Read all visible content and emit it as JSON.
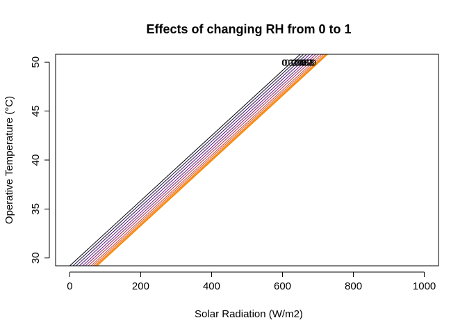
{
  "chart_data": {
    "type": "line",
    "title": "Effects of changing RH from 0 to 1",
    "xlabel": "Solar Radiation (W/m2)",
    "ylabel": "Operative Temperature (°C)",
    "xlim": [
      -40,
      1040
    ],
    "ylim": [
      29.2,
      50.8
    ],
    "xticks": [
      0,
      200,
      400,
      600,
      800,
      1000
    ],
    "xtick_labels": [
      "0",
      "200",
      "400",
      "600",
      "800",
      "1000"
    ],
    "yticks": [
      30,
      35,
      40,
      45,
      50
    ],
    "ytick_labels": [
      "30",
      "35",
      "40",
      "45",
      "50"
    ],
    "grid": false,
    "legend": "none",
    "series": [
      {
        "color": "#000000",
        "x": [
          0,
          650
        ],
        "y": [
          29.2,
          50.8
        ],
        "end_label": "0"
      },
      {
        "color": "#1a0e3d",
        "x": [
          9,
          659
        ],
        "y": [
          29.2,
          50.8
        ],
        "end_label": "0.1"
      },
      {
        "color": "#35105e",
        "x": [
          18,
          668
        ],
        "y": [
          29.2,
          50.8
        ],
        "end_label": "0.2"
      },
      {
        "color": "#51127c",
        "x": [
          27,
          677
        ],
        "y": [
          29.2,
          50.8
        ],
        "end_label": "0.3"
      },
      {
        "color": "#6c1b7f",
        "x": [
          36,
          686
        ],
        "y": [
          29.2,
          50.8
        ],
        "end_label": "0.4"
      },
      {
        "color": "#8a2570",
        "x": [
          44,
          694
        ],
        "y": [
          29.2,
          50.8
        ],
        "end_label": "0.5"
      },
      {
        "color": "#a8345e",
        "x": [
          52,
          702
        ],
        "y": [
          29.2,
          50.8
        ],
        "end_label": "0.6"
      },
      {
        "color": "#c8463a",
        "x": [
          60,
          710
        ],
        "y": [
          29.2,
          50.8
        ],
        "end_label": "0.7"
      },
      {
        "color": "#e05a22",
        "x": [
          66,
          716
        ],
        "y": [
          29.2,
          50.8
        ],
        "end_label": "0.8"
      },
      {
        "color": "#f07315",
        "x": [
          71,
          721
        ],
        "y": [
          29.2,
          50.8
        ],
        "end_label": "0.9"
      },
      {
        "color": "#f98c0a",
        "x": [
          76,
          726
        ],
        "y": [
          29.2,
          50.8
        ],
        "end_label": "1"
      }
    ]
  }
}
